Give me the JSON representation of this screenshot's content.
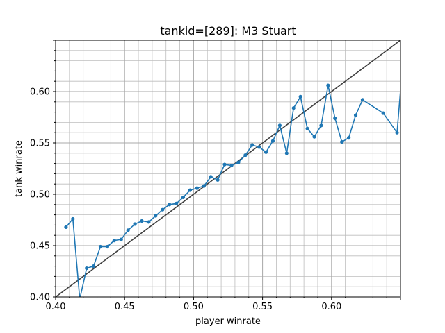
{
  "chart_data": {
    "type": "line",
    "title": "tankid=[289]: M3 Stuart",
    "xlabel": "player winrate",
    "ylabel": "tank winrate",
    "xlim": [
      0.4,
      0.65
    ],
    "ylim": [
      0.4,
      0.65
    ],
    "xticks": [
      "0.40",
      "0.45",
      "0.50",
      "0.55",
      "0.60"
    ],
    "yticks": [
      "0.40",
      "0.45",
      "0.50",
      "0.55",
      "0.60"
    ],
    "grid": true,
    "line_color": "#1f77b4",
    "reference_color": "#404040",
    "reference_line": {
      "x": [
        0.4,
        0.65
      ],
      "y": [
        0.4,
        0.65
      ]
    },
    "x": [
      0.4075,
      0.4125,
      0.4175,
      0.4225,
      0.4275,
      0.4325,
      0.4375,
      0.4425,
      0.4475,
      0.4525,
      0.4575,
      0.4625,
      0.4675,
      0.4725,
      0.4775,
      0.4825,
      0.4875,
      0.4925,
      0.4975,
      0.5025,
      0.5075,
      0.5125,
      0.5175,
      0.5225,
      0.5275,
      0.5325,
      0.5375,
      0.5425,
      0.5475,
      0.5525,
      0.5575,
      0.5625,
      0.5675,
      0.5725,
      0.5775,
      0.5825,
      0.5875,
      0.5925,
      0.5975,
      0.6025,
      0.6075,
      0.6125,
      0.6175,
      0.6225,
      0.6375,
      0.6475,
      0.6525
    ],
    "y": [
      0.468,
      0.476,
      0.398,
      0.428,
      0.43,
      0.449,
      0.449,
      0.455,
      0.456,
      0.465,
      0.471,
      0.474,
      0.473,
      0.479,
      0.485,
      0.49,
      0.491,
      0.497,
      0.504,
      0.506,
      0.508,
      0.517,
      0.514,
      0.529,
      0.528,
      0.531,
      0.538,
      0.548,
      0.546,
      0.541,
      0.552,
      0.567,
      0.54,
      0.584,
      0.595,
      0.564,
      0.556,
      0.567,
      0.606,
      0.574,
      0.551,
      0.555,
      0.577,
      0.592,
      0.579,
      0.56,
      0.642
    ]
  }
}
